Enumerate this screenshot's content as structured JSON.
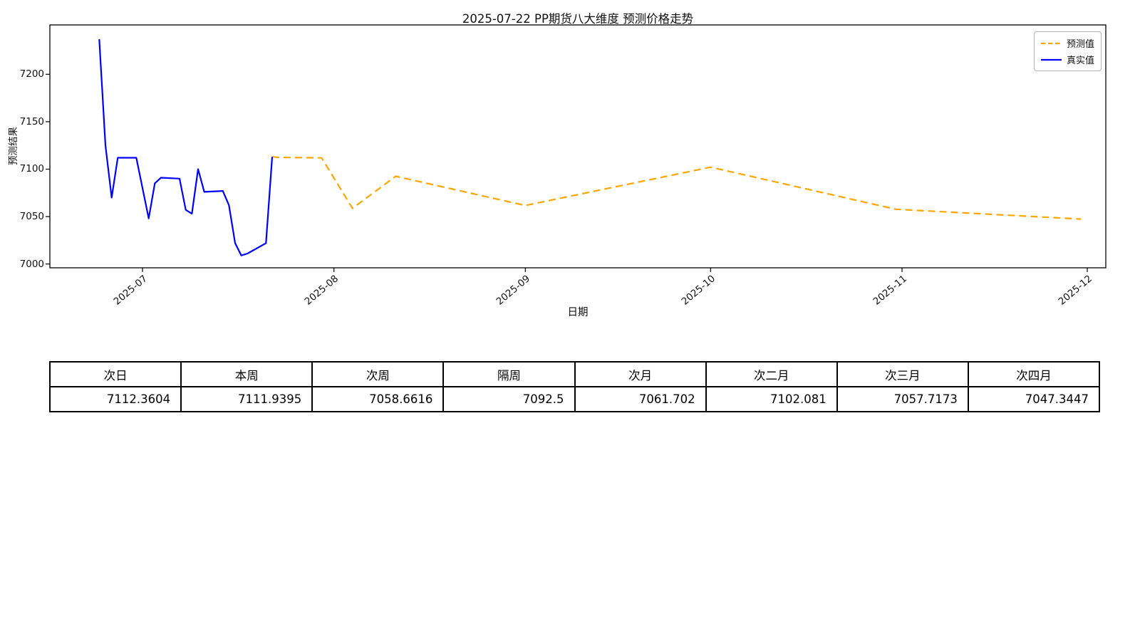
{
  "chart_data": {
    "type": "line",
    "title": "2025-07-22 PP期货八大维度 预测价格走势",
    "xlabel": "日期",
    "ylabel": "预测结果",
    "grid": false,
    "legend_position": "upper right",
    "xlim": [
      "2025-06-16",
      "2025-12-04"
    ],
    "ylim": [
      6996,
      7252
    ],
    "x_ticks": [
      {
        "date": "2025-07-01",
        "label": "2025-07"
      },
      {
        "date": "2025-08-01",
        "label": "2025-08"
      },
      {
        "date": "2025-09-01",
        "label": "2025-09"
      },
      {
        "date": "2025-10-01",
        "label": "2025-10"
      },
      {
        "date": "2025-11-01",
        "label": "2025-11"
      },
      {
        "date": "2025-12-01",
        "label": "2025-12"
      }
    ],
    "y_ticks": [
      7000,
      7050,
      7100,
      7150,
      7200
    ],
    "series": [
      {
        "name": "预测值",
        "color": "#FFA500",
        "line_style": "dashed",
        "points": [
          [
            "2025-07-22",
            7113
          ],
          [
            "2025-07-23",
            7112.3604
          ],
          [
            "2025-07-30",
            7111.9395
          ],
          [
            "2025-08-04",
            7058.6616
          ],
          [
            "2025-08-11",
            7092.5
          ],
          [
            "2025-09-01",
            7061.702
          ],
          [
            "2025-10-01",
            7102.081
          ],
          [
            "2025-10-31",
            7057.7173
          ],
          [
            "2025-11-30",
            7047.3447
          ]
        ]
      },
      {
        "name": "真实值",
        "color": "#0000FF",
        "line_style": "solid",
        "points": [
          [
            "2025-06-24",
            7237
          ],
          [
            "2025-06-25",
            7125
          ],
          [
            "2025-06-26",
            7070
          ],
          [
            "2025-06-27",
            7112
          ],
          [
            "2025-06-30",
            7112
          ],
          [
            "2025-07-01",
            7080
          ],
          [
            "2025-07-02",
            7048
          ],
          [
            "2025-07-03",
            7085
          ],
          [
            "2025-07-04",
            7091
          ],
          [
            "2025-07-07",
            7090
          ],
          [
            "2025-07-08",
            7057
          ],
          [
            "2025-07-09",
            7053
          ],
          [
            "2025-07-10",
            7100
          ],
          [
            "2025-07-11",
            7076
          ],
          [
            "2025-07-14",
            7077
          ],
          [
            "2025-07-15",
            7062
          ],
          [
            "2025-07-16",
            7022
          ],
          [
            "2025-07-17",
            7009
          ],
          [
            "2025-07-18",
            7011
          ],
          [
            "2025-07-21",
            7022
          ],
          [
            "2025-07-22",
            7113
          ]
        ]
      }
    ]
  },
  "table": {
    "headers": [
      "次日",
      "本周",
      "次周",
      "隔周",
      "次月",
      "次二月",
      "次三月",
      "次四月"
    ],
    "values": [
      "7112.3604",
      "7111.9395",
      "7058.6616",
      "7092.5",
      "7061.702",
      "7102.081",
      "7057.7173",
      "7047.3447"
    ]
  }
}
